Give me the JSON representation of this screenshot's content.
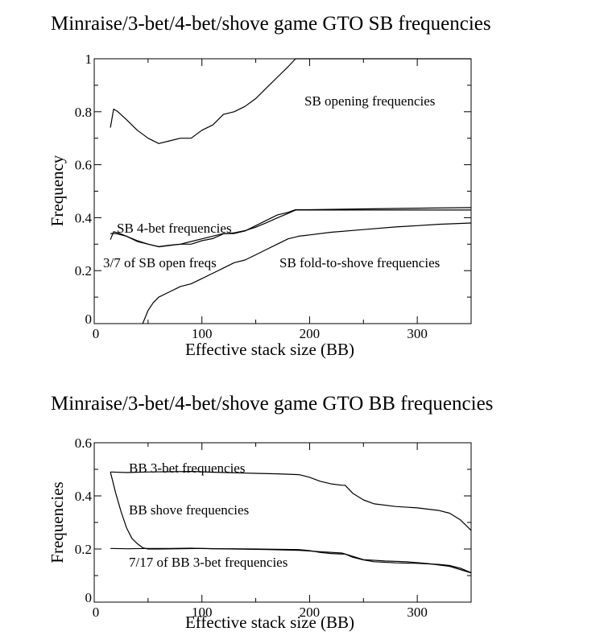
{
  "chart_data": [
    {
      "type": "line",
      "title": "Minraise/3-bet/4-bet/shove game GTO SB frequencies",
      "xlabel": "Effective stack size (BB)",
      "ylabel": "Frequency",
      "xlim": [
        0,
        350
      ],
      "ylim": [
        0,
        1.0
      ],
      "x_ticks": [
        "0",
        "100",
        "200",
        "300"
      ],
      "y_ticks": [
        "0",
        "0.2",
        "0.4",
        "0.6",
        "0.8",
        "1"
      ],
      "grid": false,
      "series": [
        {
          "name": "SB opening frequencies",
          "x": [
            15,
            18,
            22,
            30,
            40,
            50,
            60,
            70,
            80,
            90,
            100,
            110,
            120,
            130,
            140,
            150,
            160,
            170,
            180,
            187,
            200,
            250,
            300,
            350
          ],
          "y": [
            0.74,
            0.81,
            0.8,
            0.77,
            0.73,
            0.7,
            0.68,
            0.69,
            0.7,
            0.7,
            0.73,
            0.75,
            0.79,
            0.8,
            0.82,
            0.85,
            0.89,
            0.93,
            0.97,
            1.0,
            1.0,
            1.0,
            1.0,
            1.0
          ]
        },
        {
          "name": "SB 4-bet frequencies",
          "x": [
            15,
            20,
            30,
            40,
            50,
            60,
            70,
            80,
            90,
            100,
            110,
            120,
            130,
            140,
            150,
            160,
            170,
            180,
            187,
            200,
            250,
            300,
            350
          ],
          "y": [
            0.34,
            0.34,
            0.33,
            0.31,
            0.3,
            0.29,
            0.295,
            0.3,
            0.31,
            0.32,
            0.33,
            0.34,
            0.34,
            0.35,
            0.37,
            0.39,
            0.41,
            0.42,
            0.43,
            0.43,
            0.433,
            0.436,
            0.438
          ]
        },
        {
          "name": "3/7 of SB open freqs",
          "x": [
            15,
            18,
            22,
            30,
            40,
            50,
            60,
            70,
            80,
            90,
            100,
            110,
            120,
            130,
            140,
            150,
            160,
            170,
            180,
            187,
            200,
            250,
            300,
            350
          ],
          "y": [
            0.317,
            0.347,
            0.343,
            0.33,
            0.313,
            0.3,
            0.291,
            0.296,
            0.3,
            0.3,
            0.313,
            0.321,
            0.339,
            0.343,
            0.351,
            0.364,
            0.381,
            0.399,
            0.416,
            0.429,
            0.429,
            0.429,
            0.429,
            0.429
          ]
        },
        {
          "name": "SB fold-to-shove frequencies",
          "x": [
            45,
            50,
            55,
            60,
            70,
            80,
            90,
            100,
            110,
            120,
            130,
            140,
            150,
            160,
            170,
            180,
            190,
            200,
            220,
            250,
            280,
            300,
            320,
            350
          ],
          "y": [
            0.0,
            0.05,
            0.08,
            0.1,
            0.12,
            0.14,
            0.15,
            0.17,
            0.19,
            0.21,
            0.23,
            0.24,
            0.26,
            0.28,
            0.3,
            0.32,
            0.33,
            0.335,
            0.345,
            0.355,
            0.365,
            0.37,
            0.375,
            0.38
          ]
        }
      ]
    },
    {
      "type": "line",
      "title": "Minraise/3-bet/4-bet/shove game GTO BB frequencies",
      "xlabel": "Effective stack size (BB)",
      "ylabel": "Frequencies",
      "xlim": [
        0,
        350
      ],
      "ylim": [
        0,
        0.6
      ],
      "x_ticks": [
        "0",
        "100",
        "200",
        "300"
      ],
      "y_ticks": [
        "0",
        "0.2",
        "0.4",
        "0.6"
      ],
      "grid": false,
      "series": [
        {
          "name": "BB 3-bet frequencies",
          "x": [
            15,
            30,
            50,
            70,
            90,
            110,
            130,
            150,
            170,
            190,
            200,
            210,
            220,
            230,
            233,
            240,
            250,
            260,
            280,
            300,
            320,
            330,
            340,
            350
          ],
          "y": [
            0.49,
            0.488,
            0.49,
            0.491,
            0.492,
            0.489,
            0.487,
            0.485,
            0.483,
            0.48,
            0.47,
            0.455,
            0.445,
            0.44,
            0.44,
            0.41,
            0.385,
            0.37,
            0.36,
            0.355,
            0.345,
            0.335,
            0.31,
            0.27
          ]
        },
        {
          "name": "BB shove frequencies",
          "x": [
            15,
            20,
            25,
            30,
            35,
            40,
            45,
            50,
            60,
            80,
            100,
            130,
            160,
            190,
            210,
            230,
            250,
            270,
            290,
            310,
            330,
            350
          ],
          "y": [
            0.49,
            0.41,
            0.34,
            0.28,
            0.24,
            0.22,
            0.205,
            0.2,
            0.2,
            0.201,
            0.202,
            0.2,
            0.198,
            0.195,
            0.19,
            0.185,
            0.16,
            0.155,
            0.152,
            0.145,
            0.135,
            0.11
          ]
        },
        {
          "name": "7/17 of BB 3-bet frequencies",
          "x": [
            15,
            30,
            50,
            70,
            90,
            110,
            130,
            150,
            170,
            190,
            200,
            210,
            220,
            230,
            233,
            240,
            250,
            260,
            280,
            300,
            320,
            330,
            340,
            350
          ],
          "y": [
            0.202,
            0.201,
            0.202,
            0.202,
            0.203,
            0.201,
            0.201,
            0.2,
            0.199,
            0.198,
            0.194,
            0.187,
            0.183,
            0.181,
            0.181,
            0.169,
            0.159,
            0.152,
            0.148,
            0.146,
            0.142,
            0.138,
            0.128,
            0.111
          ]
        }
      ]
    }
  ]
}
